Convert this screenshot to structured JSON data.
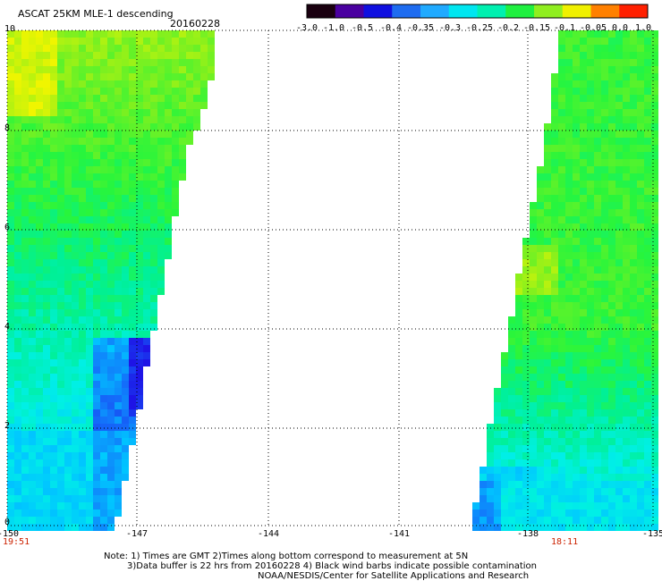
{
  "title": "ASCAT 25KM MLE-1 descending",
  "date": "20160228",
  "colorbar": {
    "labels": [
      "-3.0",
      "-1.0",
      "-0.5",
      "-0.4",
      "-0.35",
      "-0.3",
      "-0.25",
      "-0.2",
      "-0.15",
      "-0.1",
      "-0.05",
      "0.0",
      "1.0"
    ]
  },
  "map": {
    "lon_min": -150,
    "lon_max": -135,
    "lat_min": 0,
    "lat_max": 10,
    "x_ticks": [
      "-150",
      "-147",
      "-144",
      "-141",
      "-138",
      "-135"
    ],
    "y_ticks": [
      "10",
      "8",
      "6",
      "4",
      "2",
      "0"
    ],
    "left_time": "19:51",
    "right_time": "18:11",
    "grid": true
  },
  "notes": {
    "line1": "Note: 1) Times are GMT 2)Times along bottom correspond to measurement at 5N",
    "line2": "3)Data buffer is 22 hrs from 20160228 4) Black wind barbs indicate possible contamination",
    "line3": "NOAA/NESDIS/Center for Satellite Applications and Research"
  }
}
